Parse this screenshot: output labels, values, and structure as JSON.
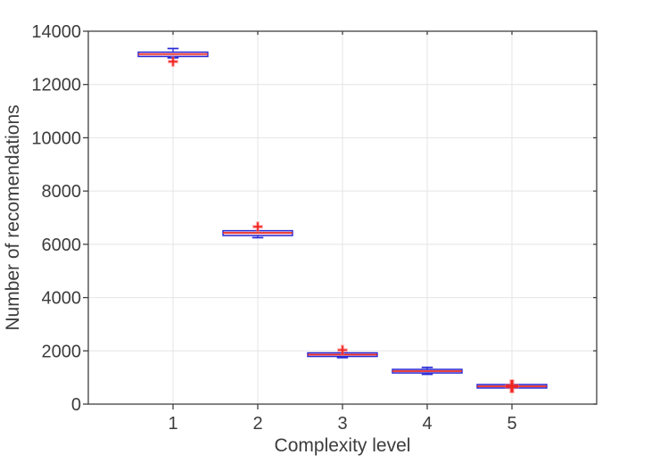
{
  "chart_data": {
    "type": "boxplot",
    "title": "",
    "xlabel": "Complexity level",
    "ylabel": "Number of recomendations",
    "xlim": [
      0,
      6
    ],
    "ylim": [
      0,
      14000
    ],
    "x_ticks": [
      1,
      2,
      3,
      4,
      5
    ],
    "x_tick_labels": [
      "1",
      "2",
      "3",
      "4",
      "5"
    ],
    "y_ticks": [
      0,
      2000,
      4000,
      6000,
      8000,
      10000,
      12000,
      14000
    ],
    "y_tick_labels": [
      "0",
      "2000",
      "4000",
      "6000",
      "8000",
      "10000",
      "12000",
      "14000"
    ],
    "grid": true,
    "legend": "none",
    "box_half_width": 0.41,
    "cap_half_width": 0.066,
    "boxes": [
      {
        "position": 1,
        "q1": 13050,
        "median": 13140,
        "q3": 13215,
        "whisker_low": 13000,
        "whisker_high": 13350,
        "outliers": [
          12860
        ],
        "outlier_size": 10,
        "outlier_stroke": 1.7
      },
      {
        "position": 2,
        "q1": 6330,
        "median": 6430,
        "q3": 6510,
        "whisker_low": 6250,
        "whisker_high": 6510,
        "outliers": [
          6660
        ],
        "outlier_size": 10,
        "outlier_stroke": 1.7
      },
      {
        "position": 3,
        "q1": 1790,
        "median": 1860,
        "q3": 1925,
        "whisker_low": 1745,
        "whisker_high": 1925,
        "outliers": [
          2030
        ],
        "outlier_size": 10,
        "outlier_stroke": 1.7
      },
      {
        "position": 4,
        "q1": 1170,
        "median": 1240,
        "q3": 1305,
        "whisker_low": 1120,
        "whisker_high": 1380,
        "outliers": [],
        "outlier_size": 10,
        "outlier_stroke": 1.7
      },
      {
        "position": 5,
        "q1": 605,
        "median": 670,
        "q3": 735,
        "whisker_low": 605,
        "whisker_high": 735,
        "outliers": [
          670
        ],
        "outlier_size": 14,
        "outlier_stroke": 3.2
      }
    ],
    "style": {
      "box_color": "#2929d6",
      "median_color": "#ea2c24",
      "whisker_color": "#2929d6",
      "outlier_color": "#f02420",
      "outlier_glow": "rgba(255,110,110,0.45)",
      "axis_color": "#404040",
      "grid_color": "#e4e4e4",
      "text_color": "#3c3c3c",
      "background": "#ffffff"
    }
  }
}
